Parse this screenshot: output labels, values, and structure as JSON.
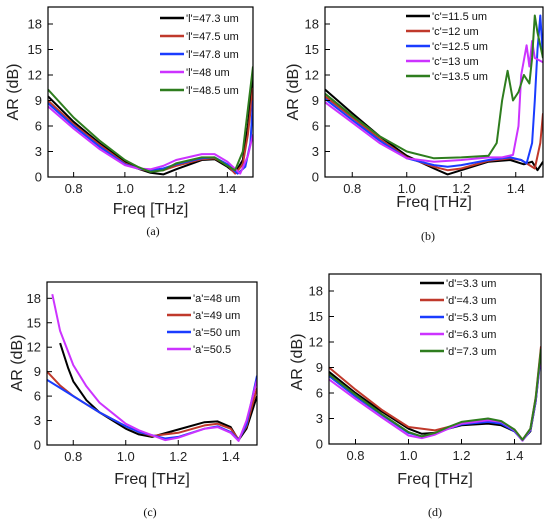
{
  "chart_data": [
    {
      "type": "line",
      "caption": "(a)",
      "xlabel": "Freq [THz]",
      "ylabel": "AR (dB)",
      "xlim": [
        0.7,
        1.5
      ],
      "ylim": [
        0,
        20
      ],
      "xticks": [
        0.8,
        1.0,
        1.2,
        1.4
      ],
      "xtick_labels": [
        "0.8",
        "1.0",
        "1.2",
        "1.4"
      ],
      "yticks": [
        0,
        3,
        6,
        9,
        12,
        15,
        18
      ],
      "ytick_labels": [
        "0",
        "3",
        "6",
        "9",
        "12",
        "15",
        "18"
      ],
      "legend_position": "top-right",
      "series": [
        {
          "name": "'l'=47.3 um",
          "color": "#000000",
          "x": [
            0.7,
            0.8,
            0.9,
            1.0,
            1.05,
            1.1,
            1.15,
            1.2,
            1.3,
            1.35,
            1.4,
            1.43,
            1.46,
            1.48,
            1.5
          ],
          "y": [
            9.5,
            6.5,
            4.0,
            1.8,
            1.0,
            0.5,
            0.3,
            0.9,
            2.0,
            2.1,
            1.2,
            0.5,
            2.0,
            6.0,
            12.0
          ]
        },
        {
          "name": "'l'=47.5 um",
          "color": "#c0392b",
          "x": [
            0.7,
            0.8,
            0.9,
            1.0,
            1.05,
            1.1,
            1.15,
            1.2,
            1.3,
            1.35,
            1.4,
            1.43,
            1.46,
            1.48,
            1.5
          ],
          "y": [
            9.0,
            6.2,
            3.8,
            1.6,
            1.0,
            0.7,
            0.8,
            1.3,
            2.1,
            2.2,
            1.4,
            0.4,
            1.5,
            5.0,
            10.5
          ]
        },
        {
          "name": "'l'=47.8 um",
          "color": "#1a3cff",
          "x": [
            0.7,
            0.8,
            0.9,
            1.0,
            1.05,
            1.1,
            1.15,
            1.2,
            1.3,
            1.35,
            1.4,
            1.44,
            1.47,
            1.49,
            1.5
          ],
          "y": [
            8.7,
            6.0,
            3.6,
            1.5,
            1.0,
            0.8,
            1.0,
            1.5,
            2.2,
            2.3,
            1.5,
            0.4,
            1.2,
            4.0,
            9.0
          ]
        },
        {
          "name": "'l'=48 um",
          "color": "#cc33ff",
          "x": [
            0.7,
            0.8,
            0.9,
            1.0,
            1.05,
            1.1,
            1.15,
            1.2,
            1.3,
            1.35,
            1.4,
            1.45,
            1.48,
            1.5
          ],
          "y": [
            8.3,
            5.7,
            3.3,
            1.4,
            1.0,
            0.9,
            1.3,
            2.0,
            2.7,
            2.7,
            1.8,
            0.4,
            2.5,
            5.0
          ]
        },
        {
          "name": "'l'=48.5 um",
          "color": "#2e7d1e",
          "x": [
            0.7,
            0.8,
            0.9,
            1.0,
            1.05,
            1.1,
            1.15,
            1.2,
            1.3,
            1.35,
            1.4,
            1.43,
            1.46,
            1.48,
            1.5
          ],
          "y": [
            10.3,
            7.0,
            4.3,
            2.0,
            1.2,
            0.6,
            0.8,
            1.6,
            2.3,
            2.3,
            1.3,
            0.8,
            3.0,
            8.0,
            13.0
          ]
        }
      ]
    },
    {
      "type": "line",
      "caption": "(b)",
      "xlabel": "Freq [THz]",
      "ylabel": "AR (dB)",
      "xlim": [
        0.7,
        1.5
      ],
      "ylim": [
        0,
        20
      ],
      "xticks": [
        0.8,
        1.0,
        1.2,
        1.4
      ],
      "xtick_labels": [
        "0.8",
        "1.0",
        "1.2",
        "1.4"
      ],
      "yticks": [
        0,
        3,
        6,
        9,
        12,
        15,
        18
      ],
      "ytick_labels": [
        "0",
        "3",
        "6",
        "9",
        "12",
        "15",
        "18"
      ],
      "legend_position": "top-left",
      "series": [
        {
          "name": "'c'=11.5 um",
          "color": "#000000",
          "x": [
            0.7,
            0.8,
            0.9,
            1.0,
            1.1,
            1.15,
            1.2,
            1.3,
            1.38,
            1.43,
            1.46,
            1.48,
            1.5
          ],
          "y": [
            10.3,
            7.5,
            4.8,
            2.5,
            1.0,
            0.3,
            0.8,
            1.8,
            2.0,
            1.5,
            1.8,
            0.8,
            1.8
          ]
        },
        {
          "name": "'c'=12 um",
          "color": "#c0392b",
          "x": [
            0.7,
            0.8,
            0.9,
            1.0,
            1.1,
            1.15,
            1.2,
            1.3,
            1.38,
            1.42,
            1.45,
            1.47,
            1.49,
            1.5
          ],
          "y": [
            9.5,
            7.0,
            4.5,
            2.3,
            1.2,
            0.8,
            1.0,
            1.9,
            2.2,
            2.0,
            1.4,
            1.0,
            4.0,
            7.5
          ]
        },
        {
          "name": "'c'=12.5 um",
          "color": "#1a3cff",
          "x": [
            0.7,
            0.8,
            0.9,
            1.0,
            1.1,
            1.15,
            1.2,
            1.3,
            1.38,
            1.42,
            1.44,
            1.46,
            1.47,
            1.48,
            1.49,
            1.5
          ],
          "y": [
            9.2,
            6.7,
            4.3,
            2.2,
            1.4,
            1.2,
            1.4,
            2.0,
            2.3,
            2.0,
            1.6,
            4.0,
            9.0,
            15.0,
            19.0,
            14.0
          ]
        },
        {
          "name": "'c'=13 um",
          "color": "#cc33ff",
          "x": [
            0.7,
            0.8,
            0.9,
            1.0,
            1.1,
            1.2,
            1.3,
            1.35,
            1.39,
            1.41,
            1.42,
            1.44,
            1.45,
            1.46,
            1.47,
            1.5
          ],
          "y": [
            8.8,
            6.4,
            4.0,
            2.2,
            1.8,
            2.0,
            2.3,
            2.3,
            2.6,
            6.0,
            12.0,
            15.5,
            13.0,
            16.0,
            14.0,
            13.5
          ]
        },
        {
          "name": "'c'=13.5 um",
          "color": "#2e7d1e",
          "x": [
            0.7,
            0.8,
            0.9,
            1.0,
            1.1,
            1.2,
            1.3,
            1.33,
            1.35,
            1.37,
            1.39,
            1.41,
            1.43,
            1.45,
            1.46,
            1.47,
            1.48,
            1.5
          ],
          "y": [
            9.8,
            7.2,
            4.8,
            3.0,
            2.2,
            2.3,
            2.5,
            4.0,
            9.0,
            12.5,
            9.0,
            10.0,
            12.0,
            11.0,
            14.0,
            19.0,
            17.0,
            14.0
          ]
        }
      ]
    },
    {
      "type": "line",
      "caption": "(c)",
      "xlabel": "Freq [THz]",
      "ylabel": "AR (dB)",
      "xlim": [
        0.7,
        1.5
      ],
      "ylim": [
        0,
        20
      ],
      "xticks": [
        0.8,
        1.0,
        1.2,
        1.4
      ],
      "xtick_labels": [
        "0.8",
        "1.0",
        "1.2",
        "1.4"
      ],
      "yticks": [
        0,
        3,
        6,
        9,
        12,
        15,
        18
      ],
      "ytick_labels": [
        "0",
        "3",
        "6",
        "9",
        "12",
        "15",
        "18"
      ],
      "legend_position": "top-right",
      "series": [
        {
          "name": "'a'=48 um",
          "color": "#000000",
          "x": [
            0.75,
            0.78,
            0.8,
            0.85,
            0.9,
            1.0,
            1.05,
            1.1,
            1.2,
            1.3,
            1.35,
            1.4,
            1.43,
            1.46,
            1.5
          ],
          "y": [
            12.5,
            9.5,
            7.8,
            5.5,
            4.0,
            2.0,
            1.3,
            1.0,
            1.9,
            2.8,
            2.9,
            2.2,
            0.6,
            2.0,
            6.0
          ]
        },
        {
          "name": "'a'=49 um",
          "color": "#c0392b",
          "x": [
            0.7,
            0.75,
            0.8,
            0.85,
            0.9,
            1.0,
            1.05,
            1.1,
            1.2,
            1.3,
            1.35,
            1.4,
            1.43,
            1.46,
            1.5
          ],
          "y": [
            9.0,
            7.3,
            6.0,
            5.0,
            4.0,
            2.3,
            1.6,
            1.1,
            1.5,
            2.4,
            2.6,
            2.0,
            0.7,
            2.3,
            7.0
          ]
        },
        {
          "name": "'a'=50 um",
          "color": "#1a3cff",
          "x": [
            0.7,
            0.8,
            0.85,
            0.9,
            1.0,
            1.05,
            1.1,
            1.15,
            1.2,
            1.3,
            1.35,
            1.4,
            1.43,
            1.46,
            1.5
          ],
          "y": [
            8.0,
            6.0,
            5.0,
            4.0,
            2.3,
            1.6,
            1.2,
            0.8,
            1.0,
            2.0,
            2.3,
            1.6,
            0.6,
            2.5,
            8.5
          ]
        },
        {
          "name": "'a'=50.5",
          "color": "#cc33ff",
          "x": [
            0.72,
            0.75,
            0.8,
            0.85,
            0.9,
            1.0,
            1.05,
            1.1,
            1.15,
            1.2,
            1.3,
            1.35,
            1.4,
            1.43,
            1.46,
            1.5
          ],
          "y": [
            18.5,
            14.0,
            9.8,
            7.2,
            5.2,
            2.6,
            1.8,
            1.2,
            0.6,
            0.9,
            2.0,
            2.2,
            1.5,
            0.5,
            3.0,
            8.0
          ]
        }
      ]
    },
    {
      "type": "line",
      "caption": "(d)",
      "xlabel": "Freq [THz]",
      "ylabel": "AR (dB)",
      "xlim": [
        0.7,
        1.5
      ],
      "ylim": [
        0,
        20
      ],
      "xticks": [
        0.8,
        1.0,
        1.2,
        1.4
      ],
      "xtick_labels": [
        "0.8",
        "1.0",
        "1.2",
        "1.4"
      ],
      "yticks": [
        0,
        3,
        6,
        9,
        12,
        15,
        18
      ],
      "ytick_labels": [
        "0",
        "3",
        "6",
        "9",
        "12",
        "15",
        "18"
      ],
      "legend_position": "top-right",
      "series": [
        {
          "name": "'d'=3.3 um",
          "color": "#000000",
          "x": [
            0.7,
            0.8,
            0.9,
            1.0,
            1.05,
            1.1,
            1.15,
            1.2,
            1.3,
            1.35,
            1.4,
            1.43,
            1.46,
            1.48,
            1.5
          ],
          "y": [
            8.5,
            6.0,
            3.8,
            1.8,
            1.2,
            1.3,
            1.8,
            2.2,
            2.4,
            2.2,
            1.5,
            0.5,
            1.5,
            5.0,
            11.0
          ]
        },
        {
          "name": "'d'=4.3 um",
          "color": "#c0392b",
          "x": [
            0.7,
            0.8,
            0.9,
            1.0,
            1.1,
            1.15,
            1.2,
            1.3,
            1.35,
            1.4,
            1.43,
            1.46,
            1.48,
            1.5
          ],
          "y": [
            9.0,
            6.4,
            4.0,
            2.0,
            1.6,
            2.0,
            2.4,
            2.8,
            2.6,
            1.7,
            0.5,
            1.8,
            5.5,
            11.5
          ]
        },
        {
          "name": "'d'=5.3 um",
          "color": "#1a3cff",
          "x": [
            0.7,
            0.8,
            0.9,
            1.0,
            1.05,
            1.1,
            1.15,
            1.2,
            1.3,
            1.35,
            1.4,
            1.43,
            1.46,
            1.48,
            1.5
          ],
          "y": [
            8.0,
            5.6,
            3.4,
            1.3,
            0.9,
            1.2,
            1.8,
            2.3,
            2.6,
            2.4,
            1.5,
            0.4,
            1.6,
            5.0,
            10.5
          ]
        },
        {
          "name": "'d'=6.3 um",
          "color": "#cc33ff",
          "x": [
            0.7,
            0.8,
            0.9,
            1.0,
            1.05,
            1.1,
            1.15,
            1.2,
            1.3,
            1.35,
            1.4,
            1.43,
            1.46,
            1.48,
            1.5
          ],
          "y": [
            7.6,
            5.3,
            3.1,
            1.0,
            0.7,
            1.1,
            1.8,
            2.4,
            2.8,
            2.6,
            1.6,
            0.4,
            1.7,
            5.2,
            10.8
          ]
        },
        {
          "name": "'d'=7.3 um",
          "color": "#2e7d1e",
          "x": [
            0.7,
            0.8,
            0.9,
            1.0,
            1.05,
            1.1,
            1.15,
            1.2,
            1.3,
            1.35,
            1.4,
            1.43,
            1.46,
            1.48,
            1.5
          ],
          "y": [
            8.2,
            5.8,
            3.5,
            1.4,
            0.9,
            1.3,
            2.0,
            2.6,
            3.0,
            2.7,
            1.7,
            0.5,
            1.8,
            5.4,
            11.2
          ]
        }
      ]
    }
  ]
}
